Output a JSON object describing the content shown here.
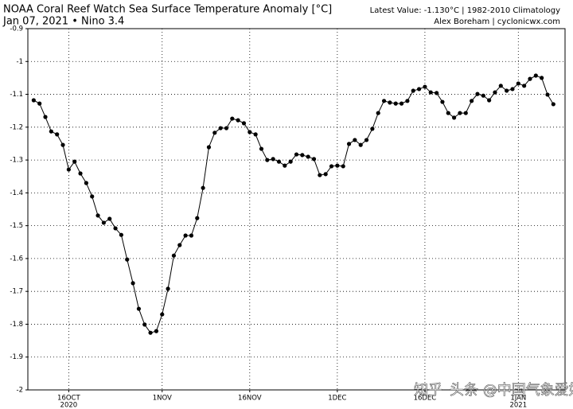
{
  "chart_data": {
    "type": "line",
    "title": "NOAA Coral Reef Watch Sea Surface Temperature Anomaly [°C]",
    "subtitle": "Jan 07, 2021 • Nino 3.4",
    "latest": "Latest Value: -1.130°C | 1982-2010 Climatology",
    "credit": "Alex Boreham | cyclonicwx.com",
    "watermark": "头条 @中国气象爱好者",
    "watermark2": "知乎",
    "color": "#000000",
    "grid": true,
    "x": [
      "2020-10-10",
      "2020-10-11",
      "2020-10-12",
      "2020-10-13",
      "2020-10-14",
      "2020-10-15",
      "2020-10-16",
      "2020-10-17",
      "2020-10-18",
      "2020-10-19",
      "2020-10-20",
      "2020-10-21",
      "2020-10-22",
      "2020-10-23",
      "2020-10-24",
      "2020-10-25",
      "2020-10-26",
      "2020-10-27",
      "2020-10-28",
      "2020-10-29",
      "2020-10-30",
      "2020-10-31",
      "2020-11-01",
      "2020-11-02",
      "2020-11-03",
      "2020-11-04",
      "2020-11-05",
      "2020-11-06",
      "2020-11-07",
      "2020-11-08",
      "2020-11-09",
      "2020-11-10",
      "2020-11-11",
      "2020-11-12",
      "2020-11-13",
      "2020-11-14",
      "2020-11-15",
      "2020-11-16",
      "2020-11-17",
      "2020-11-18",
      "2020-11-19",
      "2020-11-20",
      "2020-11-21",
      "2020-11-22",
      "2020-11-23",
      "2020-11-24",
      "2020-11-25",
      "2020-11-26",
      "2020-11-27",
      "2020-11-28",
      "2020-11-29",
      "2020-11-30",
      "2020-12-01",
      "2020-12-02",
      "2020-12-03",
      "2020-12-04",
      "2020-12-05",
      "2020-12-06",
      "2020-12-07",
      "2020-12-08",
      "2020-12-09",
      "2020-12-10",
      "2020-12-11",
      "2020-12-12",
      "2020-12-13",
      "2020-12-14",
      "2020-12-15",
      "2020-12-16",
      "2020-12-17",
      "2020-12-18",
      "2020-12-19",
      "2020-12-20",
      "2020-12-21",
      "2020-12-22",
      "2020-12-23",
      "2020-12-24",
      "2020-12-25",
      "2020-12-26",
      "2020-12-27",
      "2020-12-28",
      "2020-12-29",
      "2020-12-30",
      "2020-12-31",
      "2021-01-01",
      "2021-01-02",
      "2021-01-03",
      "2021-01-04",
      "2021-01-05",
      "2021-01-06",
      "2021-01-07"
    ],
    "values": [
      -1.118,
      -1.128,
      -1.169,
      -1.213,
      -1.222,
      -1.254,
      -1.329,
      -1.305,
      -1.341,
      -1.37,
      -1.411,
      -1.469,
      -1.491,
      -1.479,
      -1.508,
      -1.528,
      -1.603,
      -1.675,
      -1.753,
      -1.801,
      -1.826,
      -1.821,
      -1.77,
      -1.692,
      -1.591,
      -1.559,
      -1.53,
      -1.53,
      -1.477,
      -1.385,
      -1.261,
      -1.217,
      -1.203,
      -1.203,
      -1.174,
      -1.179,
      -1.188,
      -1.215,
      -1.222,
      -1.266,
      -1.3,
      -1.297,
      -1.305,
      -1.317,
      -1.305,
      -1.283,
      -1.285,
      -1.29,
      -1.297,
      -1.346,
      -1.343,
      -1.319,
      -1.317,
      -1.319,
      -1.251,
      -1.239,
      -1.254,
      -1.239,
      -1.205,
      -1.157,
      -1.12,
      -1.125,
      -1.128,
      -1.128,
      -1.12,
      -1.089,
      -1.084,
      -1.077,
      -1.094,
      -1.096,
      -1.123,
      -1.157,
      -1.171,
      -1.157,
      -1.157,
      -1.12,
      -1.099,
      -1.104,
      -1.118,
      -1.094,
      -1.074,
      -1.089,
      -1.084,
      -1.067,
      -1.074,
      -1.053,
      -1.043,
      -1.05,
      -1.101,
      -1.13
    ],
    "xlim": [
      "2020-10-09",
      "2021-01-09"
    ],
    "xticks": [
      {
        "value": "2020-10-16",
        "label": "16OCT",
        "year": "2020"
      },
      {
        "value": "2020-11-01",
        "label": "1NOV"
      },
      {
        "value": "2020-11-16",
        "label": "16NOV"
      },
      {
        "value": "2020-12-01",
        "label": "1DEC"
      },
      {
        "value": "2020-12-16",
        "label": "16DEC"
      },
      {
        "value": "2021-01-01",
        "label": "1JAN",
        "year": "2021"
      }
    ],
    "ylim": [
      -2,
      -0.9
    ],
    "yticks": [
      -0.9,
      -1,
      -1.1,
      -1.2,
      -1.3,
      -1.4,
      -1.5,
      -1.6,
      -1.7,
      -1.8,
      -1.9,
      -2
    ]
  }
}
